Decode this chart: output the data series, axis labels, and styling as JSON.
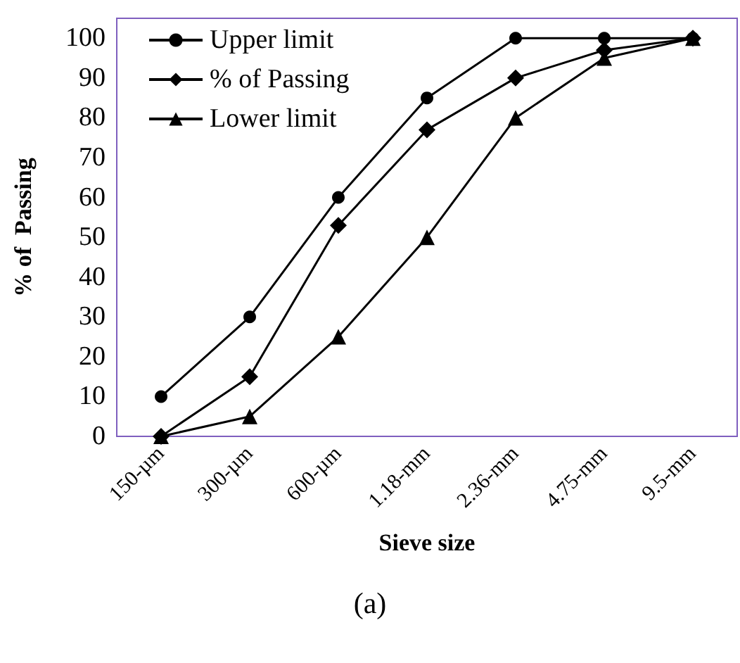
{
  "chart_data": {
    "type": "line",
    "xlabel": "Sieve size",
    "ylabel": "% of  Passing",
    "annotations": [
      "(a)"
    ],
    "categories": [
      "150-µm",
      "300-µm",
      "600-µm",
      "1.18-mm",
      "2.36-mm",
      "4.75-mm",
      "9.5-mm"
    ],
    "series": [
      {
        "name": "Upper limit",
        "color": "#000000",
        "marker": "circle",
        "values": [
          10,
          30,
          60,
          85,
          100,
          100,
          100
        ]
      },
      {
        "name": "% of Passing",
        "color": "#000000",
        "marker": "diamond",
        "values": [
          0,
          15,
          53,
          77,
          90,
          97,
          100
        ]
      },
      {
        "name": "Lower limit",
        "color": "#000000",
        "marker": "triangle",
        "values": [
          0,
          5,
          25,
          50,
          80,
          95,
          100
        ]
      }
    ],
    "ylim": [
      0,
      105
    ],
    "yticks": [
      0,
      10,
      20,
      30,
      40,
      50,
      60,
      70,
      80,
      90,
      100
    ],
    "grid": false,
    "legend": "top left",
    "line_style": "solid"
  }
}
